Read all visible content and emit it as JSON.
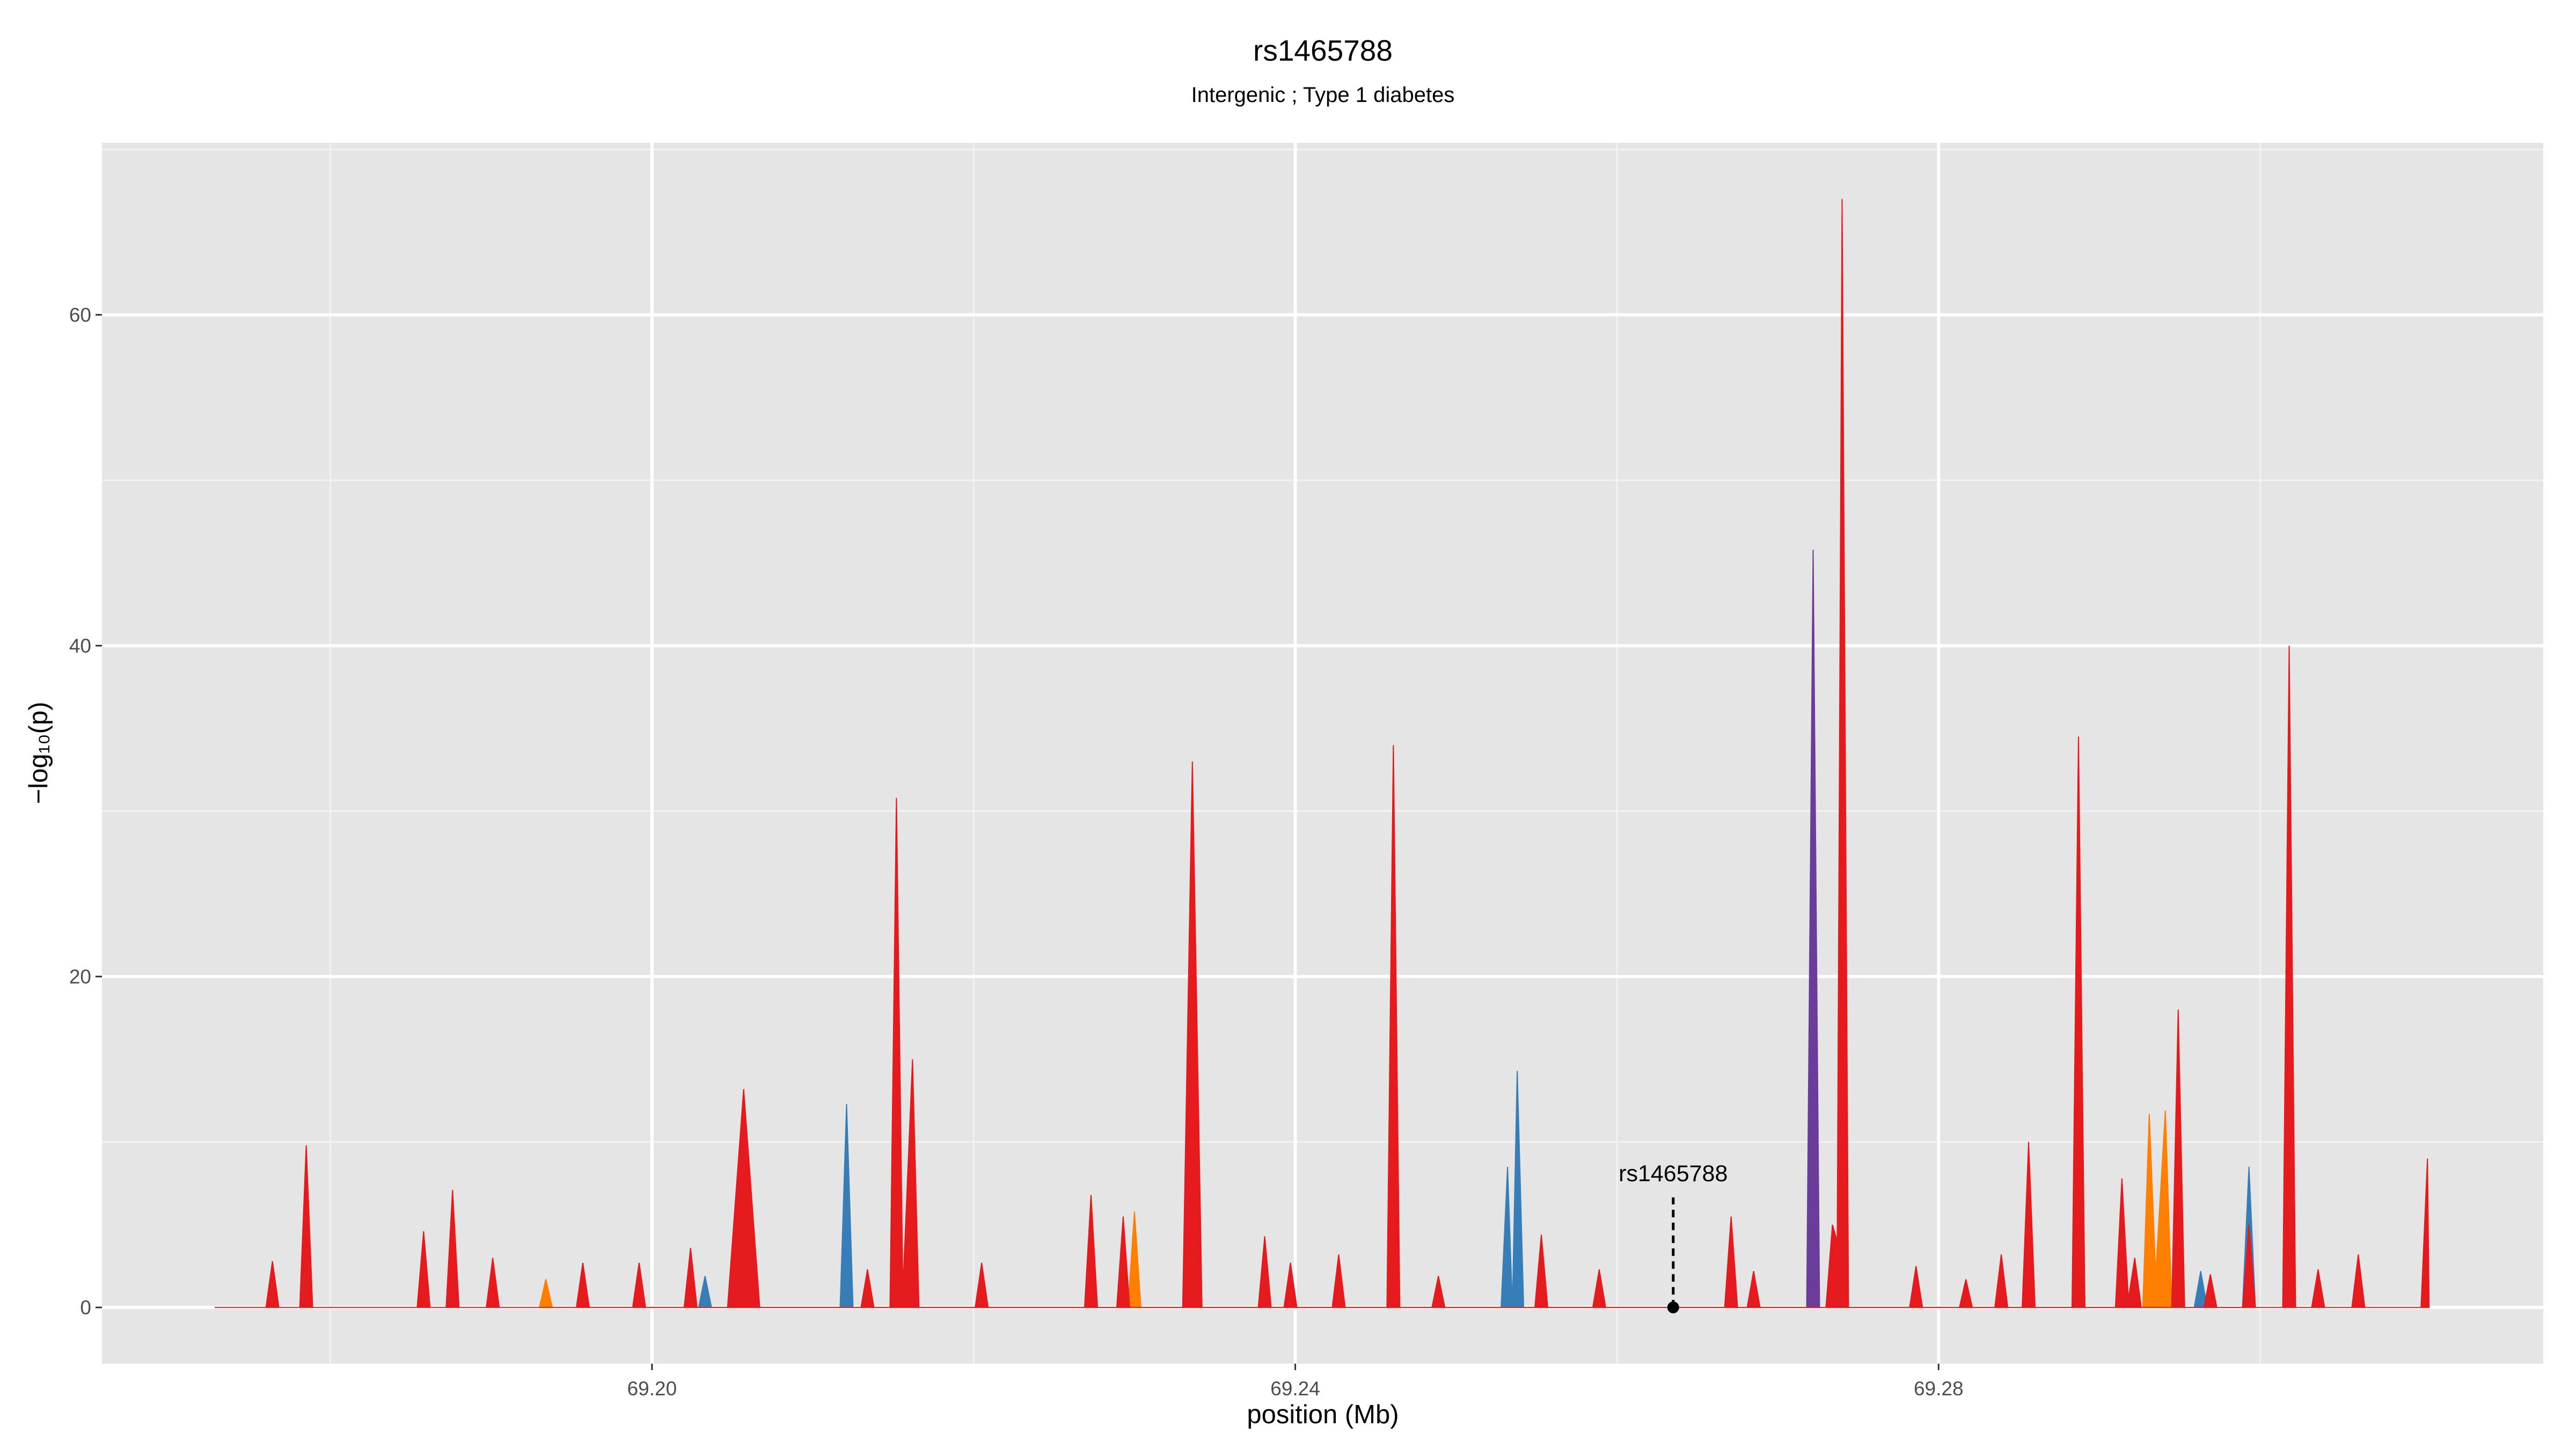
{
  "chart_data": {
    "type": "area",
    "title": "rs1465788",
    "subtitle": "Intergenic ; Type 1 diabetes",
    "x_label": "position (Mb)",
    "y_label": "−log₁₀(p)",
    "xlim": [
      69.1658,
      69.3176
    ],
    "ylim": [
      -3.4,
      70.4
    ],
    "xticks": [
      {
        "value": 69.2,
        "label": "69.20"
      },
      {
        "value": 69.24,
        "label": "69.24"
      },
      {
        "value": 69.28,
        "label": "69.28"
      }
    ],
    "xticks_minor": [
      69.18,
      69.22,
      69.26,
      69.3
    ],
    "yticks": [
      0,
      20,
      40,
      60
    ],
    "yticks_minor": [
      10,
      30,
      50,
      70
    ],
    "grid": true,
    "series": [
      {
        "color": "#377eb8",
        "x": [
          69.2029,
          69.2033,
          69.2037,
          69.2117,
          69.2121,
          69.2125,
          69.2528,
          69.2532,
          69.2535,
          69.2538,
          69.2542,
          69.2959,
          69.2963,
          69.2967,
          69.2989,
          69.2993,
          69.2997
        ],
        "values": [
          0,
          1.9,
          0,
          0,
          12.3,
          0,
          0,
          8.5,
          0,
          14.3,
          0,
          0,
          2.2,
          0,
          0,
          8.5,
          0
        ]
      },
      {
        "color": "#ff7f00",
        "x": [
          69.193,
          69.1934,
          69.1938,
          69.2296,
          69.23,
          69.2304,
          69.2927,
          69.2931,
          69.2935,
          69.2941,
          69.2945
        ],
        "values": [
          0,
          1.7,
          0,
          0,
          5.8,
          0,
          0,
          11.7,
          2,
          11.9,
          0
        ]
      },
      {
        "color": "#6a3d9a",
        "x": [
          69.2718,
          69.2722,
          69.2726
        ],
        "values": [
          0,
          45.8,
          0
        ]
      },
      {
        "color": "#e41a1c",
        "x": [
          69.1728,
          69.176,
          69.1764,
          69.1768,
          69.1781,
          69.1785,
          69.1789,
          69.1854,
          69.1858,
          69.1862,
          69.1872,
          69.1876,
          69.188,
          69.1897,
          69.1901,
          69.1905,
          69.1953,
          69.1957,
          69.1961,
          69.1988,
          69.1992,
          69.1996,
          69.202,
          69.2024,
          69.2028,
          69.2047,
          69.2057,
          69.2067,
          69.213,
          69.2134,
          69.2138,
          69.2148,
          69.2152,
          69.2156,
          69.2162,
          69.2166,
          69.2201,
          69.2205,
          69.2209,
          69.2269,
          69.2273,
          69.2277,
          69.2289,
          69.2293,
          69.2297,
          69.233,
          69.2336,
          69.2342,
          69.2377,
          69.2381,
          69.2385,
          69.2393,
          69.2397,
          69.2401,
          69.2423,
          69.2427,
          69.2431,
          69.2457,
          69.2461,
          69.2465,
          69.2485,
          69.2489,
          69.2493,
          69.2549,
          69.2553,
          69.2557,
          69.2585,
          69.2589,
          69.2593,
          69.2667,
          69.2671,
          69.2675,
          69.2681,
          69.2685,
          69.2689,
          69.273,
          69.2734,
          69.2737,
          69.274,
          69.2744,
          69.2782,
          69.2786,
          69.279,
          69.2813,
          69.2817,
          69.2821,
          69.2835,
          69.2839,
          69.2843,
          69.2852,
          69.2856,
          69.286,
          69.2883,
          69.2887,
          69.2891,
          69.291,
          69.2914,
          69.2918,
          69.2922,
          69.2926,
          69.2945,
          69.2949,
          69.2953,
          69.2965,
          69.2969,
          69.2973,
          69.2989,
          69.2993,
          69.2997,
          69.3014,
          69.3018,
          69.3022,
          69.3032,
          69.3036,
          69.304,
          69.3057,
          69.3061,
          69.3065,
          69.31,
          69.3104,
          69.3105
        ],
        "values": [
          0,
          0,
          2.8,
          0,
          0,
          9.8,
          0,
          0,
          4.6,
          0,
          0,
          7.1,
          0,
          0,
          3,
          0,
          0,
          2.7,
          0,
          0,
          2.7,
          0,
          0,
          3.6,
          0,
          0,
          13.2,
          0,
          0,
          2.3,
          0,
          0,
          30.8,
          1,
          15,
          0,
          0,
          2.7,
          0,
          0,
          6.8,
          0,
          0,
          5.5,
          0,
          0,
          33,
          0,
          0,
          4.3,
          0,
          0,
          2.7,
          0,
          0,
          3.2,
          0,
          0,
          34,
          0,
          0,
          1.9,
          0,
          0,
          4.4,
          0,
          0,
          2.3,
          0,
          0,
          5.5,
          0,
          0,
          2.2,
          0,
          0,
          5,
          4,
          67,
          0,
          0,
          2.5,
          0,
          0,
          1.7,
          0,
          0,
          3.2,
          0,
          0,
          10,
          0,
          0,
          34.5,
          0,
          0,
          7.8,
          0.5,
          3,
          0,
          0,
          18,
          0,
          0,
          2,
          0,
          0,
          5,
          0,
          0,
          40,
          0,
          0,
          2.3,
          0,
          0,
          3.2,
          0,
          0,
          9,
          0
        ]
      }
    ],
    "annotation": {
      "text": "rs1465788",
      "x": 69.2635,
      "y": 0
    }
  }
}
